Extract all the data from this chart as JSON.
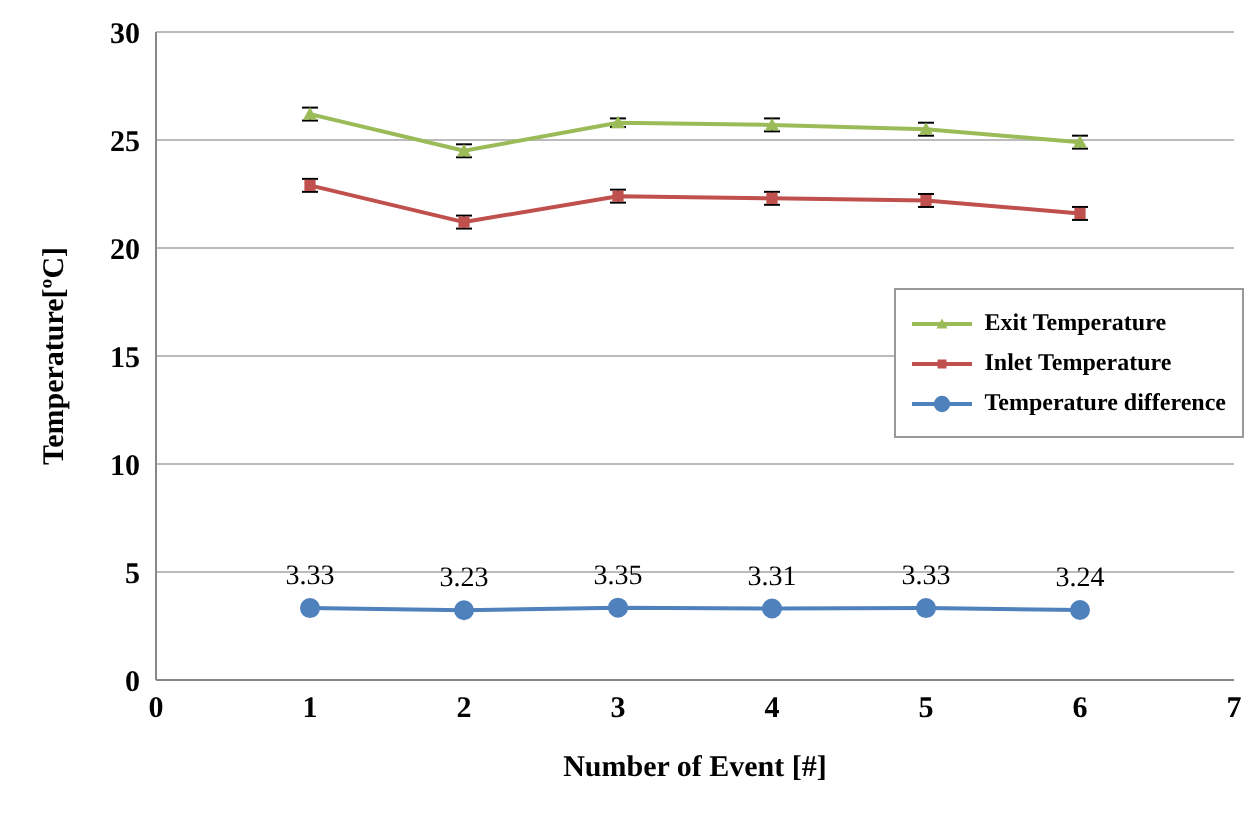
{
  "chart_data": {
    "type": "line",
    "xlabel": "Number of Event [#]",
    "ylabel": "Temperature[ºC]",
    "x": [
      1,
      2,
      3,
      4,
      5,
      6
    ],
    "series": [
      {
        "name": "Exit Temperature",
        "color": "#9bbb59",
        "marker": "triangle",
        "values": [
          26.2,
          24.5,
          25.8,
          25.7,
          25.5,
          24.9
        ],
        "errors": [
          0.3,
          0.3,
          0.2,
          0.3,
          0.3,
          0.3
        ]
      },
      {
        "name": "Inlet Temperature",
        "color": "#c0504d",
        "marker": "square",
        "values": [
          22.9,
          21.2,
          22.4,
          22.3,
          22.2,
          21.6
        ],
        "errors": [
          0.3,
          0.3,
          0.3,
          0.3,
          0.3,
          0.3
        ]
      },
      {
        "name": "Temperature difference",
        "color": "#4f81bd",
        "marker": "circle",
        "values": [
          3.33,
          3.23,
          3.35,
          3.31,
          3.33,
          3.24
        ],
        "value_labels": [
          "3.33",
          "3.23",
          "3.35",
          "3.31",
          "3.33",
          "3.24"
        ]
      }
    ],
    "xlim": [
      0,
      7
    ],
    "xticks": [
      0,
      1,
      2,
      3,
      4,
      5,
      6,
      7
    ],
    "ylim": [
      0,
      30
    ],
    "yticks": [
      0,
      5,
      10,
      15,
      20,
      25,
      30
    ],
    "grid": "y",
    "legend": "right"
  }
}
